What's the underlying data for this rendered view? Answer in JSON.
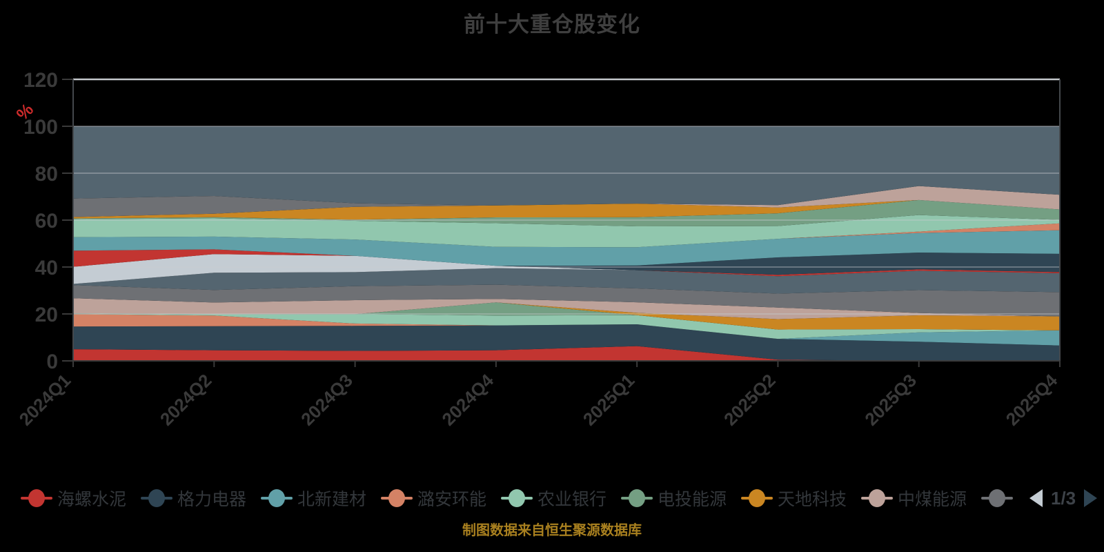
{
  "title": "前十大重仓股变化",
  "source_note": "制图数据来自恒生聚源数据库",
  "y_axis": {
    "unit_label": "%",
    "unit_color": "#cc2b2b",
    "ticks": [
      0,
      20,
      40,
      60,
      80,
      100,
      120
    ],
    "max": 120,
    "label_color": "#3a3a3a"
  },
  "x_axis": {
    "labels": [
      "2024Q1",
      "2024Q2",
      "2024Q3",
      "2024Q4",
      "2025Q1",
      "2025Q2",
      "2025Q3",
      "2025Q4"
    ],
    "label_color": "#3a3a3a",
    "rotation_deg": -45
  },
  "legend": {
    "items": [
      {
        "label": "海螺水泥",
        "color": "#c23531"
      },
      {
        "label": "格力电器",
        "color": "#2f4554"
      },
      {
        "label": "北新建材",
        "color": "#61a0a8"
      },
      {
        "label": "潞安环能",
        "color": "#d48265"
      },
      {
        "label": "农业银行",
        "color": "#91c7ae"
      },
      {
        "label": "电投能源",
        "color": "#749f83"
      },
      {
        "label": "天地科技",
        "color": "#ca8622"
      },
      {
        "label": "中煤能源",
        "color": "#bda29a"
      }
    ],
    "overflow_item": {
      "label": "",
      "color": "#6e7074"
    },
    "pager": {
      "label": "1/3",
      "prev_color": "#c4ccd3",
      "next_color": "#2f4554"
    }
  },
  "chart_data": {
    "type": "area",
    "stacked": true,
    "normalized_percent": true,
    "title": "前十大重仓股变化",
    "ylabel": "%",
    "ylim": [
      0,
      120
    ],
    "grid": true,
    "legend_position": "bottom",
    "x": [
      "2024Q1",
      "2024Q2",
      "2024Q3",
      "2024Q4",
      "2025Q1",
      "2025Q2",
      "2025Q3",
      "2025Q4"
    ],
    "series": [
      {
        "name": "海螺水泥",
        "color": "#c23531",
        "values": [
          5.0,
          4.5,
          4.3,
          4.5,
          6.3,
          0.5,
          0,
          0
        ]
      },
      {
        "name": "格力电器",
        "color": "#2f4554",
        "values": [
          9.7,
          10.2,
          10.7,
          10.5,
          9.3,
          9.0,
          8.2,
          6.5
        ]
      },
      {
        "name": "北新建材",
        "color": "#61a0a8",
        "values": [
          0,
          0,
          0,
          0,
          0,
          0,
          4.0,
          6.4
        ]
      },
      {
        "name": "潞安环能",
        "color": "#d48265",
        "values": [
          5.3,
          4.5,
          1.0,
          0,
          0,
          0,
          0,
          0
        ]
      },
      {
        "name": "农业银行",
        "color": "#91c7ae",
        "values": [
          0.3,
          0.5,
          4.0,
          4.2,
          3.9,
          4.0,
          1.4,
          0
        ]
      },
      {
        "name": "电投能源",
        "color": "#749f83",
        "values": [
          0,
          0,
          0,
          5.5,
          0,
          0,
          0,
          0
        ]
      },
      {
        "name": "天地科技",
        "color": "#ca8622",
        "values": [
          0,
          0,
          0,
          0,
          1.0,
          4.5,
          5.9,
          5.9
        ]
      },
      {
        "name": "中煤能源",
        "color": "#bda29a",
        "values": [
          6.5,
          5.0,
          6.0,
          1.5,
          4.5,
          5.0,
          1.0,
          0
        ]
      },
      {
        "name": "",
        "color": "#6e7074",
        "values": [
          5.6,
          5.3,
          6.0,
          6.0,
          5.9,
          6.0,
          9.8,
          10.3
        ]
      },
      {
        "name": "",
        "color": "#546570",
        "values": [
          0.5,
          7.3,
          6.0,
          7.0,
          7.8,
          7.5,
          8.3,
          8.0
        ]
      },
      {
        "name": "",
        "color": "#c4ccd3",
        "values": [
          7.3,
          7.9,
          7.0,
          1.0,
          0,
          0,
          0,
          0
        ]
      },
      {
        "name": "",
        "color": "#c23531",
        "values": [
          6.9,
          2.0,
          0,
          0,
          0,
          0.6,
          0.6,
          0.5
        ]
      },
      {
        "name": "",
        "color": "#2f4554",
        "values": [
          0,
          0,
          0,
          0,
          2.0,
          7.5,
          7.2,
          7.7
        ]
      },
      {
        "name": "",
        "color": "#61a0a8",
        "values": [
          5.8,
          5.4,
          7.0,
          8.0,
          7.8,
          8.0,
          8.4,
          10.0
        ]
      },
      {
        "name": "",
        "color": "#d48265",
        "values": [
          0,
          0,
          0,
          0,
          0,
          0,
          0.6,
          2.9
        ]
      },
      {
        "name": "",
        "color": "#91c7ae",
        "values": [
          7.7,
          7.7,
          8.0,
          10.0,
          8.9,
          5.5,
          7.1,
          1.5
        ]
      },
      {
        "name": "",
        "color": "#749f83",
        "values": [
          0.3,
          0.5,
          0.5,
          2.5,
          3.9,
          5.5,
          6.4,
          4.4
        ]
      },
      {
        "name": "",
        "color": "#ca8622",
        "values": [
          0.6,
          1.5,
          5.5,
          5.0,
          5.8,
          2.5,
          0,
          0
        ]
      },
      {
        "name": "",
        "color": "#bda29a",
        "values": [
          0,
          0,
          0,
          0,
          0,
          1.0,
          6.0,
          6.2
        ]
      },
      {
        "name": "",
        "color": "#6e7074",
        "values": [
          7.9,
          7.5,
          1.5,
          0,
          0,
          0,
          0,
          0
        ]
      },
      {
        "name": "",
        "color": "#546570",
        "values": [
          30.9,
          29.5,
          33.0,
          33.5,
          33.0,
          34.0,
          25.6,
          29.0
        ]
      }
    ]
  }
}
